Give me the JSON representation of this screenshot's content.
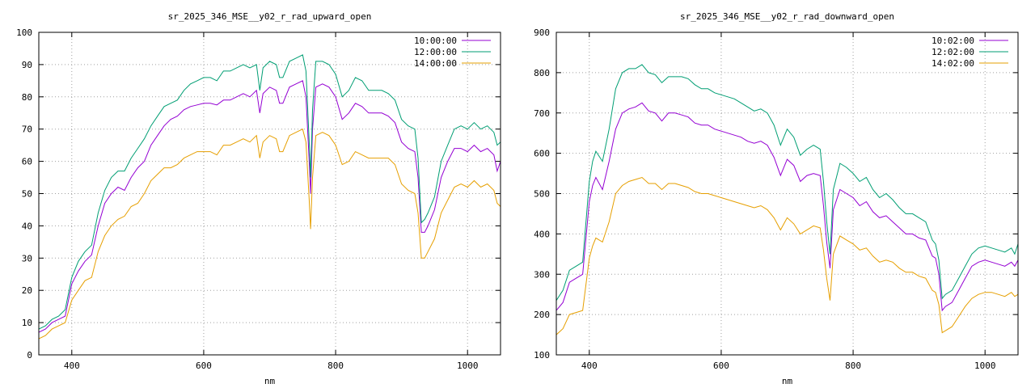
{
  "chart_data": [
    {
      "type": "line",
      "title": "sr_2025_346_MSE__y02_r_rad_upward_open",
      "xlabel": "nm",
      "ylabel": "",
      "xlim": [
        350,
        1050
      ],
      "ylim": [
        0,
        100
      ],
      "xticks": [
        400,
        600,
        800,
        1000
      ],
      "yticks": [
        0,
        10,
        20,
        30,
        40,
        50,
        60,
        70,
        80,
        90,
        100
      ],
      "grid": true,
      "legend_position": "top-right",
      "series": [
        {
          "name": "10:00:00",
          "color": "#9400d3",
          "x": [
            350,
            360,
            370,
            380,
            390,
            400,
            410,
            420,
            430,
            440,
            450,
            460,
            470,
            480,
            490,
            500,
            510,
            520,
            530,
            540,
            550,
            560,
            570,
            580,
            590,
            600,
            610,
            620,
            630,
            640,
            650,
            660,
            670,
            680,
            685,
            690,
            700,
            710,
            715,
            720,
            730,
            740,
            750,
            755,
            760,
            762,
            765,
            770,
            780,
            790,
            800,
            810,
            820,
            830,
            840,
            850,
            860,
            870,
            880,
            890,
            900,
            910,
            920,
            925,
            930,
            935,
            940,
            950,
            960,
            970,
            980,
            990,
            1000,
            1010,
            1020,
            1030,
            1040,
            1045,
            1050
          ],
          "y": [
            7,
            8,
            10,
            11,
            12,
            22,
            26,
            29,
            31,
            40,
            47,
            50,
            52,
            51,
            55,
            58,
            60,
            65,
            68,
            71,
            73,
            74,
            76,
            77,
            77.5,
            78,
            78,
            77.5,
            79,
            79,
            80,
            81,
            80,
            82,
            75,
            81,
            83,
            82,
            78,
            78,
            83,
            84,
            85,
            80,
            60,
            50,
            70,
            83,
            84,
            83,
            80,
            73,
            75,
            78,
            77,
            75,
            75,
            75,
            74,
            72,
            66,
            64,
            63,
            55,
            38,
            38,
            40,
            45,
            55,
            60,
            64,
            64,
            63,
            65,
            63,
            64,
            62,
            57,
            60
          ]
        },
        {
          "name": "12:00:00",
          "color": "#009e73",
          "x": [
            350,
            360,
            370,
            380,
            390,
            400,
            410,
            420,
            430,
            440,
            450,
            460,
            470,
            480,
            490,
            500,
            510,
            520,
            530,
            540,
            550,
            560,
            570,
            580,
            590,
            600,
            610,
            620,
            630,
            640,
            650,
            660,
            670,
            680,
            685,
            690,
            700,
            710,
            715,
            720,
            730,
            740,
            750,
            755,
            760,
            762,
            765,
            770,
            780,
            790,
            800,
            810,
            820,
            830,
            840,
            850,
            860,
            870,
            880,
            890,
            900,
            910,
            920,
            925,
            930,
            935,
            940,
            950,
            960,
            970,
            980,
            990,
            1000,
            1010,
            1020,
            1030,
            1040,
            1045,
            1050
          ],
          "y": [
            8,
            9,
            11,
            12,
            14,
            24,
            29,
            32,
            34,
            44,
            51,
            55,
            57,
            57,
            61,
            64,
            67,
            71,
            74,
            77,
            78,
            79,
            82,
            84,
            85,
            86,
            86,
            85,
            88,
            88,
            89,
            90,
            89,
            90,
            82,
            89,
            91,
            90,
            86,
            86,
            91,
            92,
            93,
            88,
            66,
            55,
            76,
            91,
            91,
            90,
            87,
            80,
            82,
            86,
            85,
            82,
            82,
            82,
            81,
            79,
            73,
            71,
            70,
            61,
            41,
            42,
            44,
            49,
            60,
            65,
            70,
            71,
            70,
            72,
            70,
            71,
            69,
            65,
            66
          ]
        },
        {
          "name": "14:00:00",
          "color": "#e69f00",
          "x": [
            350,
            360,
            370,
            380,
            390,
            400,
            410,
            420,
            430,
            440,
            450,
            460,
            470,
            480,
            490,
            500,
            510,
            520,
            530,
            540,
            550,
            560,
            570,
            580,
            590,
            600,
            610,
            620,
            630,
            640,
            650,
            660,
            670,
            680,
            685,
            690,
            700,
            710,
            715,
            720,
            730,
            740,
            750,
            755,
            760,
            762,
            765,
            770,
            780,
            790,
            800,
            810,
            820,
            830,
            840,
            850,
            860,
            870,
            880,
            890,
            900,
            910,
            920,
            925,
            930,
            935,
            940,
            950,
            960,
            970,
            980,
            990,
            1000,
            1010,
            1020,
            1030,
            1040,
            1045,
            1050
          ],
          "y": [
            5,
            6,
            8,
            9,
            10,
            17,
            20,
            23,
            24,
            32,
            37,
            40,
            42,
            43,
            46,
            47,
            50,
            54,
            56,
            58,
            58,
            59,
            61,
            62,
            63,
            63,
            63,
            62,
            65,
            65,
            66,
            67,
            66,
            68,
            61,
            66,
            68,
            67,
            63,
            63,
            68,
            69,
            70,
            66,
            48,
            39,
            55,
            68,
            69,
            68,
            65,
            59,
            60,
            63,
            62,
            61,
            61,
            61,
            61,
            59,
            53,
            51,
            50,
            44,
            30,
            30,
            32,
            36,
            44,
            48,
            52,
            53,
            52,
            54,
            52,
            53,
            51,
            47,
            46
          ]
        }
      ]
    },
    {
      "type": "line",
      "title": "sr_2025_346_MSE__y02_r_rad_downward_open",
      "xlabel": "nm",
      "ylabel": "",
      "xlim": [
        350,
        1050
      ],
      "ylim": [
        100,
        900
      ],
      "xticks": [
        400,
        600,
        800,
        1000
      ],
      "yticks": [
        100,
        200,
        300,
        400,
        500,
        600,
        700,
        800,
        900
      ],
      "grid": true,
      "legend_position": "top-right",
      "series": [
        {
          "name": "10:02:00",
          "color": "#9400d3",
          "x": [
            350,
            360,
            370,
            380,
            390,
            400,
            405,
            410,
            420,
            430,
            440,
            450,
            460,
            470,
            480,
            490,
            500,
            510,
            520,
            530,
            540,
            550,
            560,
            570,
            580,
            590,
            600,
            610,
            620,
            630,
            640,
            650,
            660,
            670,
            680,
            690,
            700,
            710,
            720,
            730,
            740,
            750,
            755,
            760,
            765,
            770,
            780,
            790,
            800,
            810,
            820,
            830,
            840,
            850,
            860,
            870,
            880,
            890,
            900,
            910,
            920,
            925,
            930,
            935,
            940,
            950,
            960,
            970,
            980,
            990,
            1000,
            1010,
            1020,
            1030,
            1040,
            1045,
            1050
          ],
          "y": [
            210,
            230,
            280,
            290,
            300,
            480,
            520,
            540,
            510,
            580,
            660,
            700,
            710,
            715,
            725,
            705,
            700,
            680,
            700,
            700,
            695,
            690,
            675,
            670,
            670,
            660,
            655,
            650,
            645,
            640,
            630,
            625,
            630,
            620,
            590,
            545,
            585,
            570,
            530,
            545,
            550,
            545,
            470,
            380,
            315,
            460,
            510,
            500,
            490,
            470,
            480,
            455,
            440,
            445,
            430,
            415,
            400,
            400,
            390,
            385,
            345,
            340,
            300,
            210,
            220,
            230,
            260,
            290,
            320,
            330,
            335,
            330,
            325,
            320,
            330,
            320,
            335
          ]
        },
        {
          "name": "12:02:00",
          "color": "#009e73",
          "x": [
            350,
            360,
            370,
            380,
            390,
            400,
            405,
            410,
            420,
            430,
            440,
            450,
            460,
            470,
            480,
            490,
            500,
            510,
            520,
            530,
            540,
            550,
            560,
            570,
            580,
            590,
            600,
            610,
            620,
            630,
            640,
            650,
            660,
            670,
            680,
            690,
            700,
            710,
            720,
            730,
            740,
            750,
            755,
            760,
            765,
            770,
            780,
            790,
            800,
            810,
            820,
            830,
            840,
            850,
            860,
            870,
            880,
            890,
            900,
            910,
            920,
            925,
            930,
            935,
            940,
            950,
            960,
            970,
            980,
            990,
            1000,
            1010,
            1020,
            1030,
            1040,
            1045,
            1050
          ],
          "y": [
            235,
            260,
            310,
            320,
            330,
            530,
            580,
            605,
            580,
            660,
            760,
            800,
            810,
            810,
            820,
            800,
            795,
            775,
            790,
            790,
            790,
            785,
            770,
            760,
            760,
            750,
            745,
            740,
            735,
            725,
            715,
            705,
            710,
            700,
            670,
            620,
            660,
            640,
            595,
            610,
            620,
            610,
            530,
            430,
            350,
            510,
            575,
            565,
            550,
            530,
            540,
            510,
            490,
            500,
            485,
            465,
            450,
            450,
            440,
            430,
            385,
            375,
            335,
            240,
            250,
            260,
            290,
            320,
            350,
            365,
            370,
            365,
            360,
            355,
            365,
            350,
            375
          ]
        },
        {
          "name": "14:02:00",
          "color": "#e69f00",
          "x": [
            350,
            360,
            370,
            380,
            390,
            400,
            405,
            410,
            420,
            430,
            440,
            450,
            460,
            470,
            480,
            490,
            500,
            510,
            520,
            530,
            540,
            550,
            560,
            570,
            580,
            590,
            600,
            610,
            620,
            630,
            640,
            650,
            660,
            670,
            680,
            690,
            700,
            710,
            720,
            730,
            740,
            750,
            755,
            760,
            765,
            770,
            780,
            790,
            800,
            810,
            820,
            830,
            840,
            850,
            860,
            870,
            880,
            890,
            900,
            910,
            920,
            925,
            930,
            935,
            940,
            950,
            960,
            970,
            980,
            990,
            1000,
            1010,
            1020,
            1030,
            1040,
            1045,
            1050
          ],
          "y": [
            150,
            165,
            200,
            205,
            210,
            340,
            370,
            390,
            380,
            430,
            500,
            520,
            530,
            535,
            540,
            525,
            525,
            510,
            525,
            525,
            520,
            515,
            505,
            500,
            500,
            495,
            490,
            485,
            480,
            475,
            470,
            465,
            470,
            460,
            440,
            410,
            440,
            425,
            400,
            410,
            420,
            415,
            360,
            290,
            235,
            350,
            395,
            385,
            375,
            360,
            365,
            345,
            330,
            335,
            330,
            315,
            305,
            305,
            295,
            290,
            260,
            255,
            225,
            155,
            160,
            170,
            195,
            220,
            240,
            250,
            255,
            255,
            250,
            245,
            255,
            245,
            250
          ]
        }
      ]
    }
  ]
}
